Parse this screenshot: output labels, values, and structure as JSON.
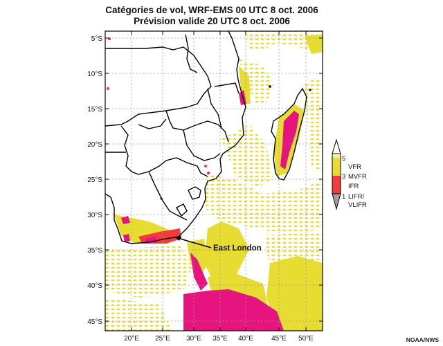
{
  "title": {
    "line1": "Catégories de vol, WRF-EMS 00 UTC 8 oct. 2006",
    "line2": "Prévision valide 20 UTC 8 oct. 2006"
  },
  "axes": {
    "lat_labels": [
      "5°S",
      "10°S",
      "15°S",
      "20°S",
      "25°S",
      "30°S",
      "35°S",
      "40°S",
      "45°S"
    ],
    "lon_labels": [
      "20°E",
      "25°E",
      "30°E",
      "35°E",
      "40°E",
      "45°E",
      "50°E"
    ]
  },
  "legend": {
    "n5": "5",
    "vfr": "VFR",
    "n3": "3",
    "mvfr": "MVFR",
    "ifr": "IFR",
    "n1": "1",
    "lifr": "LIFR/",
    "vlifr": "VLIFR",
    "colors": {
      "vfr": "#e6dc32",
      "ifr": "#f23c3c",
      "lifr": "#a0a0a0",
      "vlifr": "#e6147f"
    }
  },
  "annotation": {
    "label": "East London"
  },
  "credit": "NOAA/NWS"
}
